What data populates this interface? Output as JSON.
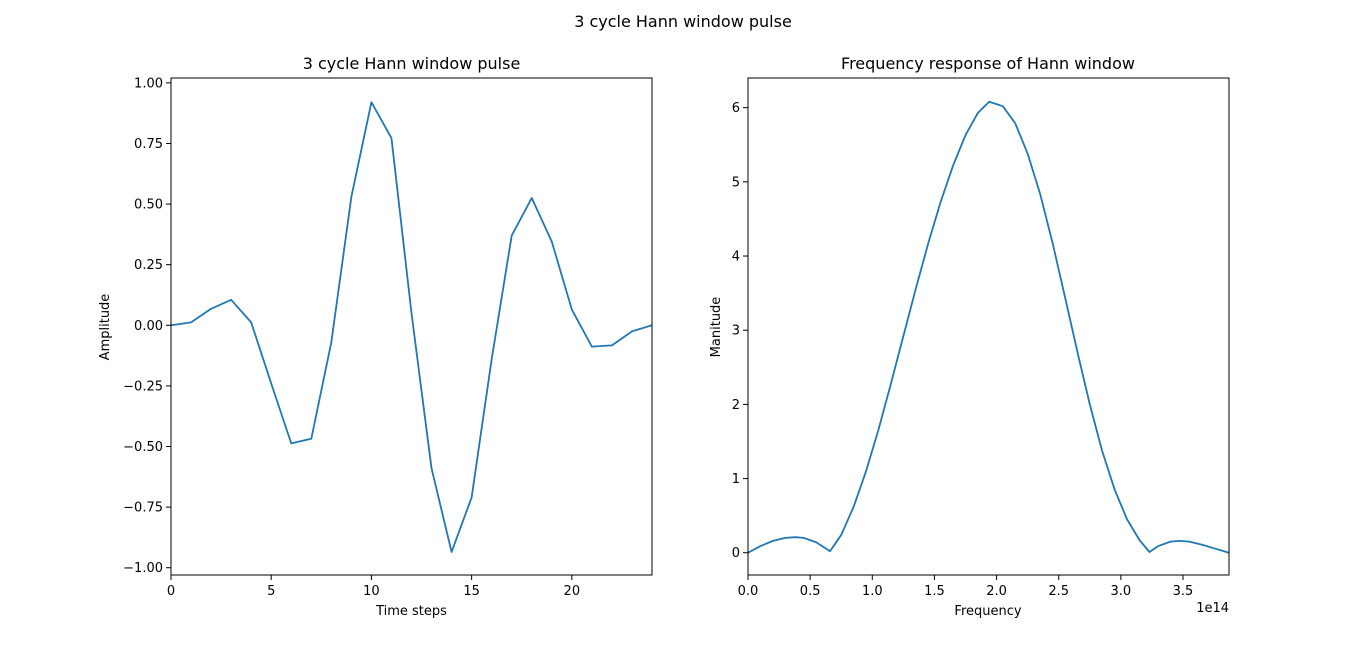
{
  "figure": {
    "suptitle": "3 cycle Hann window pulse"
  },
  "chart_data": [
    {
      "type": "line",
      "title": "3 cycle Hann window pulse",
      "xlabel": "Time steps",
      "ylabel": "Amplitude",
      "xlim": [
        0,
        24
      ],
      "ylim": [
        -1.03,
        1.02
      ],
      "xticks": [
        0,
        5,
        10,
        15,
        20
      ],
      "xtick_labels": [
        "0",
        "5",
        "10",
        "15",
        "20"
      ],
      "yticks": [
        -1.0,
        -0.75,
        -0.5,
        -0.25,
        0.0,
        0.25,
        0.5,
        0.75,
        1.0
      ],
      "ytick_labels": [
        "−1.00",
        "−0.75",
        "−0.50",
        "−0.25",
        "0.00",
        "0.25",
        "0.50",
        "0.75",
        "1.00"
      ],
      "offset_text": "",
      "grid": false,
      "color": "#1f77b4",
      "series": [
        {
          "x": [
            0,
            1,
            2,
            3,
            4,
            5,
            6,
            7,
            8,
            9,
            10,
            11,
            12,
            13,
            14,
            15,
            16,
            17,
            18,
            19,
            20,
            21,
            22,
            23,
            24
          ],
          "y": [
            0.0,
            0.012,
            0.068,
            0.105,
            0.012,
            -0.24,
            -0.487,
            -0.468,
            -0.07,
            0.53,
            0.92,
            0.772,
            0.05,
            -0.59,
            -0.935,
            -0.71,
            -0.14,
            0.37,
            0.525,
            0.345,
            0.065,
            -0.088,
            -0.083,
            -0.025,
            0.0
          ]
        }
      ]
    },
    {
      "type": "line",
      "title": "Frequency response of Hann window",
      "xlabel": "Frequency",
      "ylabel": "Manitude",
      "xlim": [
        0,
        3.87
      ],
      "ylim": [
        -0.3,
        6.4
      ],
      "xticks": [
        0,
        0.5,
        1.0,
        1.5,
        2.0,
        2.5,
        3.0,
        3.5
      ],
      "xtick_labels": [
        "0.0",
        "0.5",
        "1.0",
        "1.5",
        "2.0",
        "2.5",
        "3.0",
        "3.5"
      ],
      "yticks": [
        0,
        1,
        2,
        3,
        4,
        5,
        6
      ],
      "ytick_labels": [
        "0",
        "1",
        "2",
        "3",
        "4",
        "5",
        "6"
      ],
      "offset_text": "1e14",
      "grid": false,
      "color": "#1f77b4",
      "series": [
        {
          "x": [
            0.0,
            0.1,
            0.2,
            0.3,
            0.38,
            0.45,
            0.55,
            0.66,
            0.75,
            0.85,
            0.95,
            1.05,
            1.15,
            1.25,
            1.35,
            1.45,
            1.55,
            1.65,
            1.75,
            1.85,
            1.94,
            2.05,
            2.15,
            2.25,
            2.35,
            2.45,
            2.55,
            2.65,
            2.75,
            2.85,
            2.95,
            3.05,
            3.15,
            3.23,
            3.3,
            3.4,
            3.47,
            3.55,
            3.65,
            3.75,
            3.87
          ],
          "y": [
            0.0,
            0.09,
            0.16,
            0.2,
            0.21,
            0.2,
            0.14,
            0.02,
            0.24,
            0.62,
            1.1,
            1.66,
            2.28,
            2.92,
            3.56,
            4.17,
            4.73,
            5.22,
            5.63,
            5.93,
            6.08,
            6.02,
            5.79,
            5.38,
            4.84,
            4.18,
            3.45,
            2.71,
            2.0,
            1.37,
            0.85,
            0.45,
            0.17,
            0.01,
            0.09,
            0.15,
            0.16,
            0.15,
            0.11,
            0.06,
            0.0
          ]
        }
      ]
    }
  ]
}
